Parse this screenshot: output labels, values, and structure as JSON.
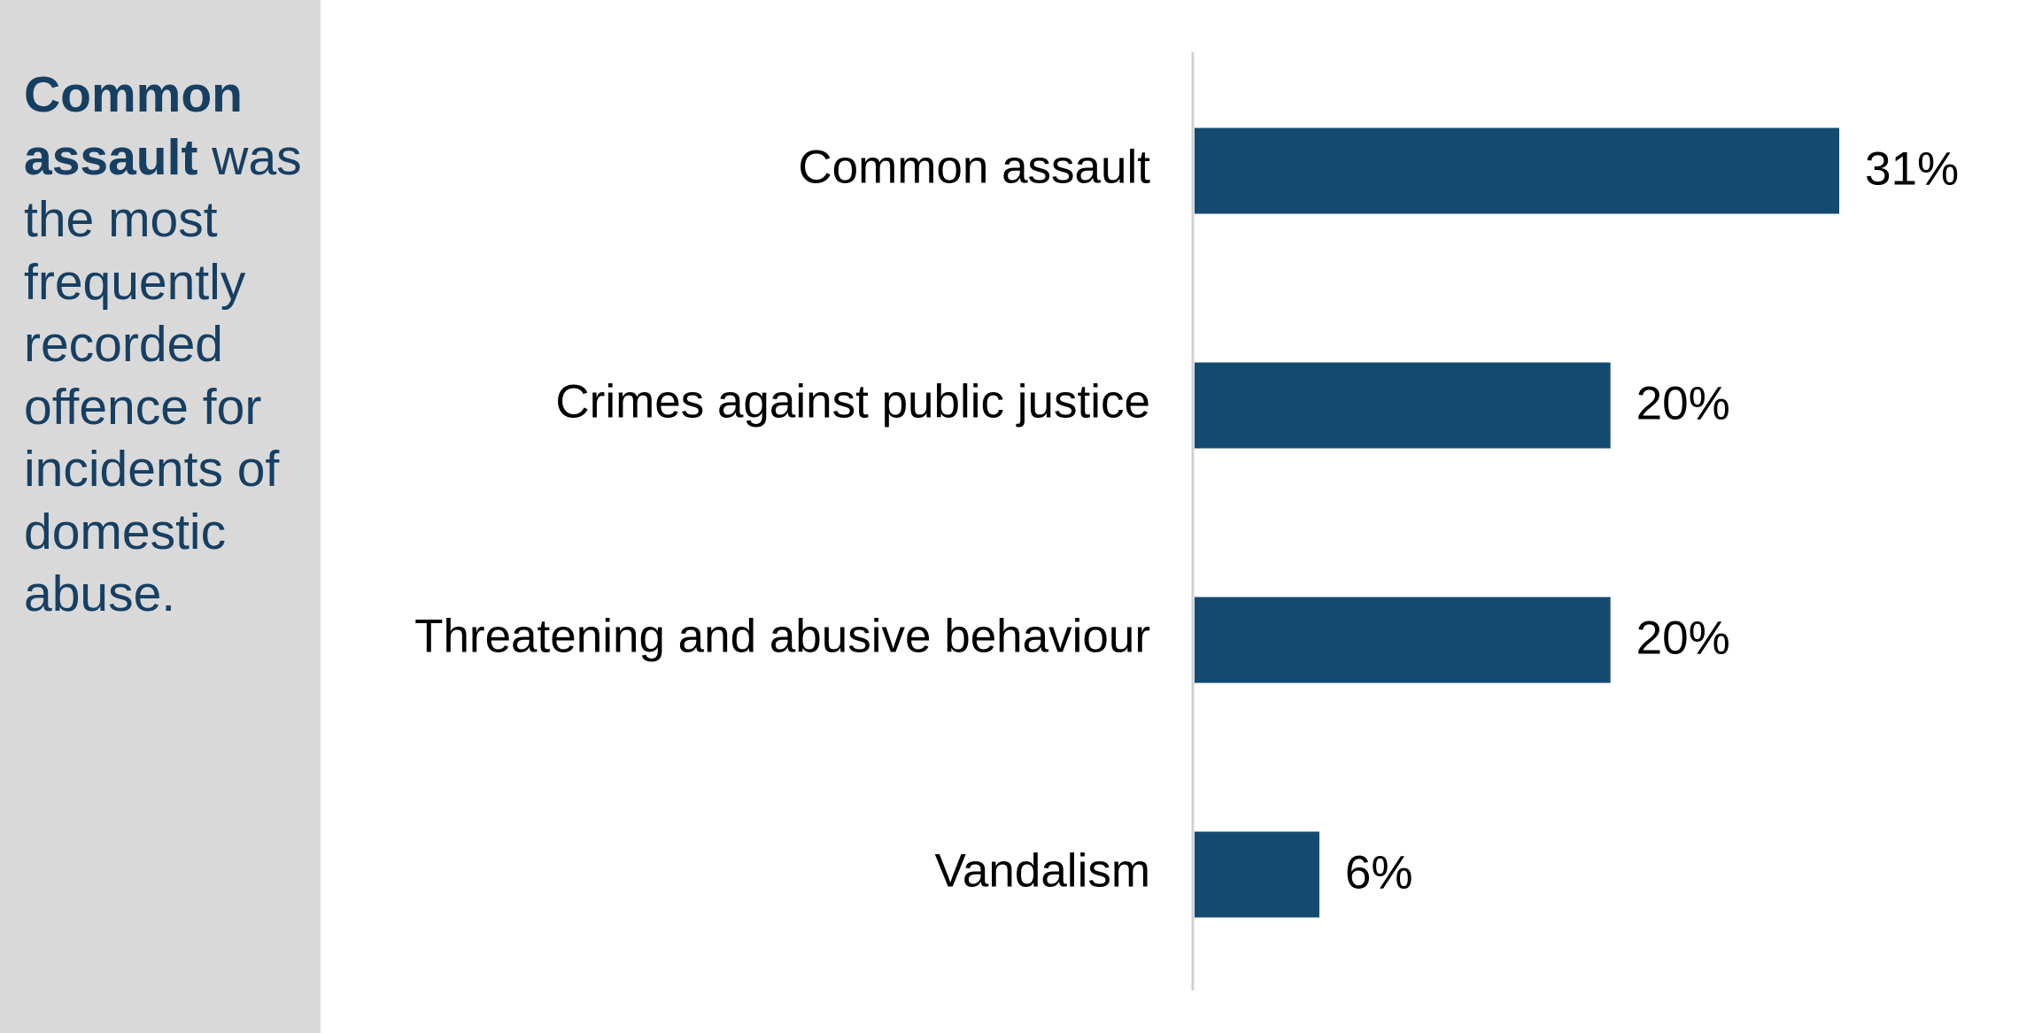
{
  "side_panel": {
    "highlight": "Common assault",
    "text": "was the most frequently recorded offence for incidents of domestic abuse."
  },
  "chart_data": {
    "type": "bar",
    "orientation": "horizontal",
    "categories": [
      "Common assault",
      "Crimes against public justice",
      "Threatening and abusive behaviour",
      "Vandalism"
    ],
    "values": [
      31,
      20,
      20,
      6
    ],
    "value_labels": [
      "31%",
      "20%",
      "20%",
      "6%"
    ],
    "color": "#154a70"
  }
}
